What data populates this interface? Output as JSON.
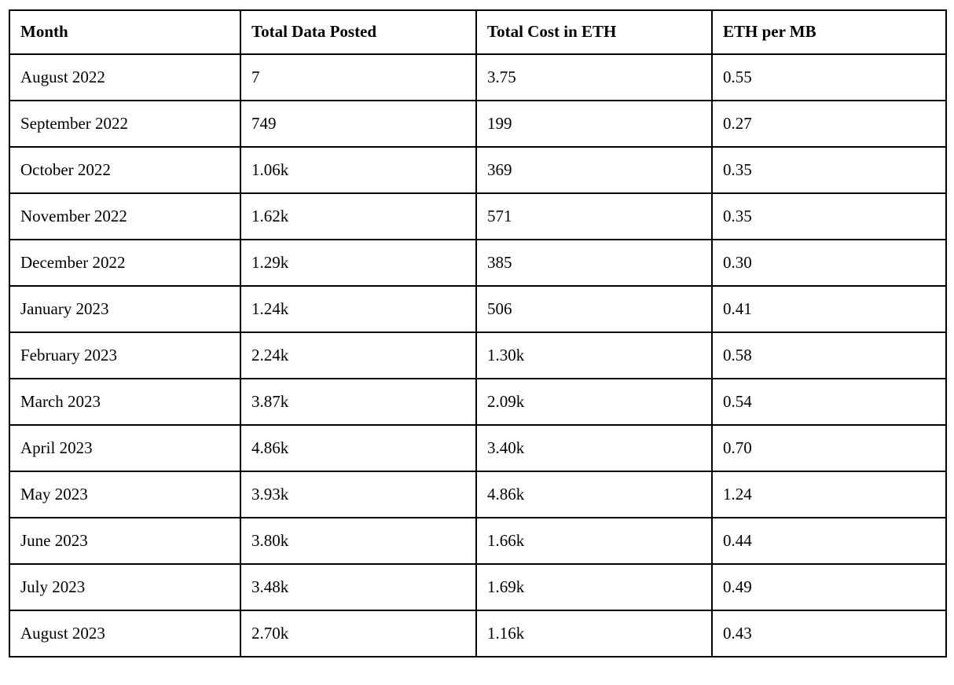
{
  "table": {
    "columns": [
      "Month",
      "Total Data Posted",
      "Total Cost in ETH",
      "ETH per MB"
    ],
    "rows": [
      [
        "August 2022",
        "7",
        "3.75",
        "0.55"
      ],
      [
        "September 2022",
        "749",
        "199",
        "0.27"
      ],
      [
        "October 2022",
        "1.06k",
        "369",
        "0.35"
      ],
      [
        "November 2022",
        "1.62k",
        "571",
        "0.35"
      ],
      [
        "December 2022",
        "1.29k",
        "385",
        "0.30"
      ],
      [
        "January 2023",
        "1.24k",
        "506",
        "0.41"
      ],
      [
        "February 2023",
        "2.24k",
        "1.30k",
        "0.58"
      ],
      [
        "March 2023",
        "3.87k",
        "2.09k",
        "0.54"
      ],
      [
        "April 2023",
        "4.86k",
        "3.40k",
        "0.70"
      ],
      [
        "May 2023",
        "3.93k",
        "4.86k",
        "1.24"
      ],
      [
        "June 2023",
        "3.80k",
        "1.66k",
        "0.44"
      ],
      [
        "July 2023",
        "3.48k",
        "1.69k",
        "0.49"
      ],
      [
        "August 2023",
        "2.70k",
        "1.16k",
        "0.43"
      ]
    ]
  },
  "chart_data": {
    "type": "table",
    "title": "",
    "columns": [
      "Month",
      "Total Data Posted",
      "Total Cost in ETH",
      "ETH per MB"
    ],
    "rows": [
      [
        "August 2022",
        "7",
        "3.75",
        "0.55"
      ],
      [
        "September 2022",
        "749",
        "199",
        "0.27"
      ],
      [
        "October 2022",
        "1.06k",
        "369",
        "0.35"
      ],
      [
        "November 2022",
        "1.62k",
        "571",
        "0.35"
      ],
      [
        "December 2022",
        "1.29k",
        "385",
        "0.30"
      ],
      [
        "January 2023",
        "1.24k",
        "506",
        "0.41"
      ],
      [
        "February 2023",
        "2.24k",
        "1.30k",
        "0.58"
      ],
      [
        "March 2023",
        "3.87k",
        "2.09k",
        "0.54"
      ],
      [
        "April 2023",
        "4.86k",
        "3.40k",
        "0.70"
      ],
      [
        "May 2023",
        "3.93k",
        "4.86k",
        "1.24"
      ],
      [
        "June 2023",
        "3.80k",
        "1.66k",
        "0.44"
      ],
      [
        "July 2023",
        "3.48k",
        "1.69k",
        "0.49"
      ],
      [
        "August 2023",
        "2.70k",
        "1.16k",
        "0.43"
      ]
    ]
  },
  "colors": {
    "border": "#000000",
    "text": "#000000",
    "background": "#ffffff"
  }
}
